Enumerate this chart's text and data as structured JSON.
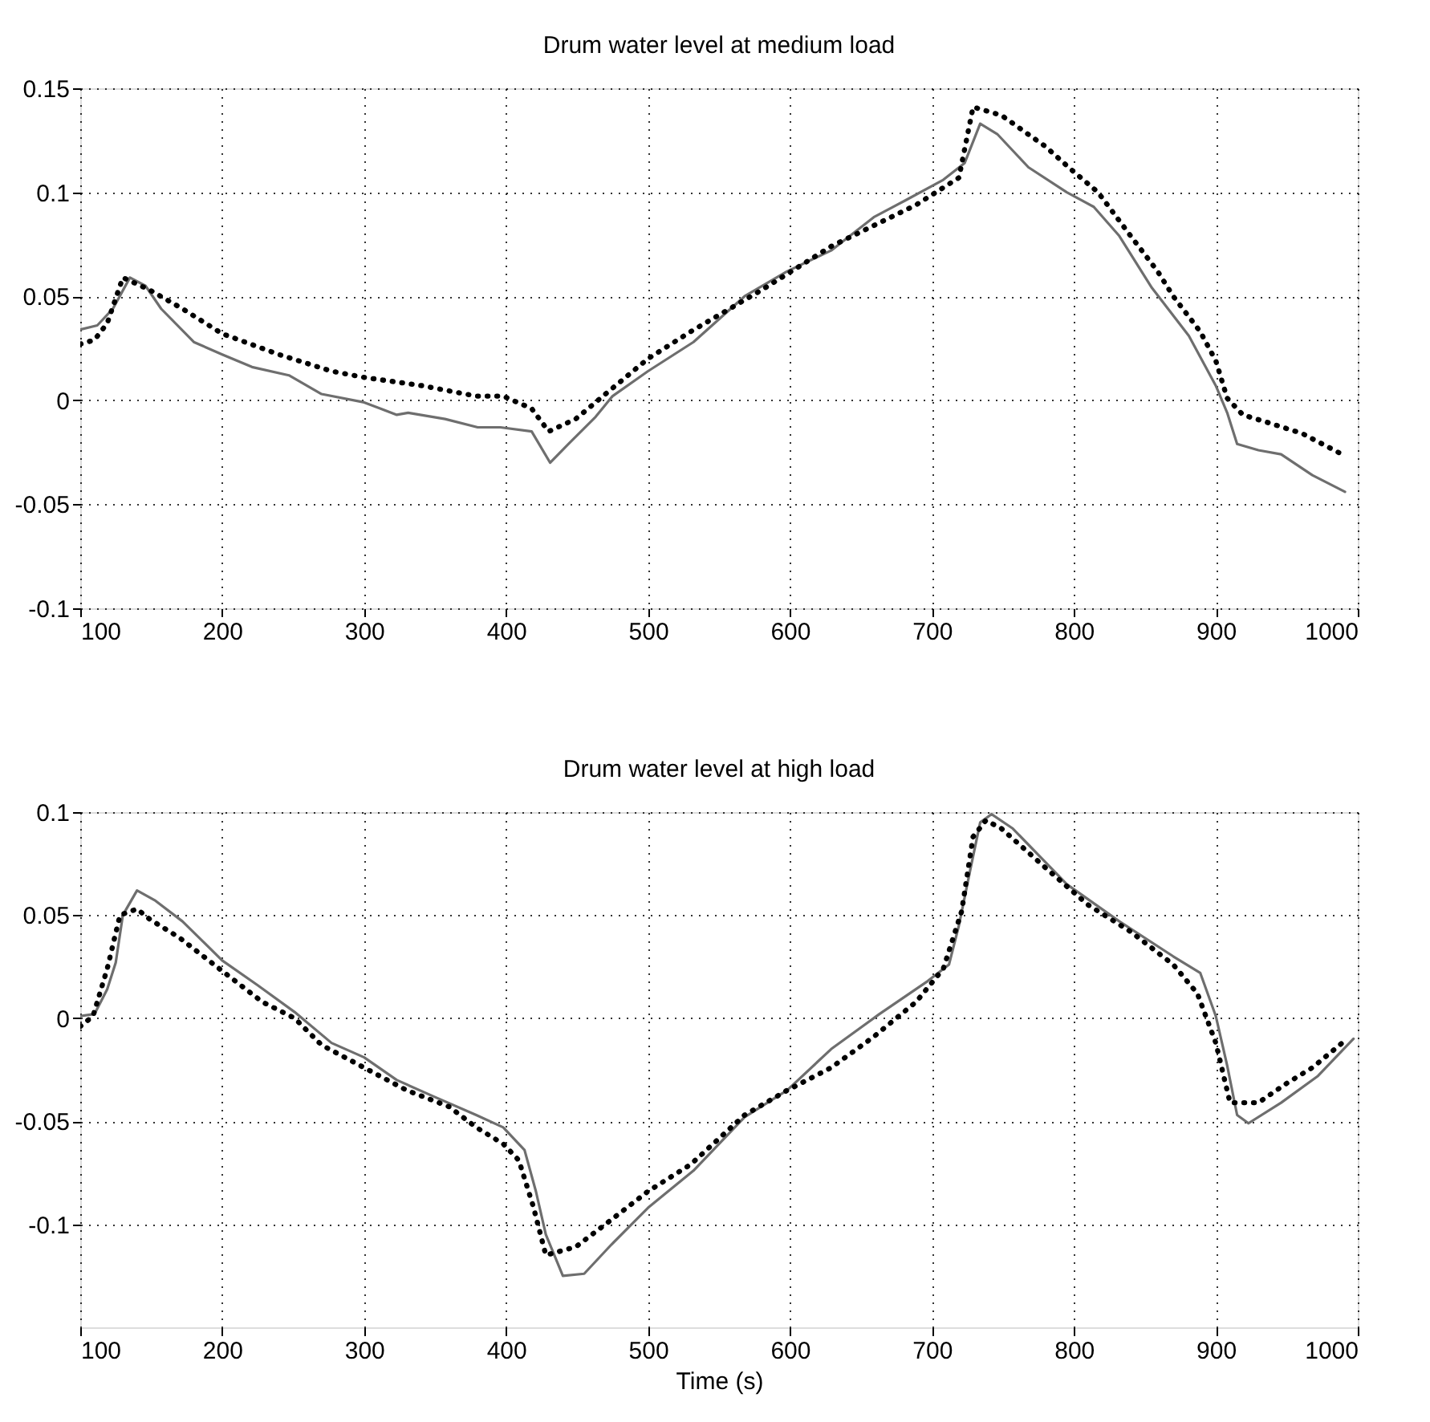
{
  "chart_data": [
    {
      "type": "line",
      "title": "Drum water level at medium load",
      "xlim": [
        100,
        1000
      ],
      "xticks": [
        100,
        200,
        300,
        400,
        500,
        600,
        700,
        800,
        900,
        1000
      ],
      "ylim": [
        -0.1,
        0.15
      ],
      "yticks": [
        -0.1,
        -0.05,
        0,
        0.05,
        0.1,
        0.15
      ],
      "grid": true,
      "legend": false,
      "marker": "none",
      "series": [
        {
          "color": "#6e6e6e",
          "line_style": "solid",
          "x": [
            100,
            112,
            123,
            135,
            146,
            157,
            180,
            200,
            221,
            247,
            270,
            300,
            323,
            331,
            357,
            380,
            396,
            418,
            431,
            444,
            463,
            475,
            500,
            532,
            568,
            598,
            629,
            659,
            681,
            708,
            723,
            734,
            746,
            768,
            795,
            814,
            832,
            855,
            881,
            900,
            908,
            915,
            930,
            946,
            968,
            991
          ],
          "values": [
            0.034,
            0.036,
            0.044,
            0.059,
            0.055,
            0.044,
            0.028,
            0.022,
            0.016,
            0.012,
            0.003,
            -0.001,
            -0.007,
            -0.006,
            -0.009,
            -0.013,
            -0.013,
            -0.015,
            -0.03,
            -0.021,
            -0.008,
            0.002,
            0.014,
            0.028,
            0.05,
            0.062,
            0.072,
            0.088,
            0.096,
            0.106,
            0.114,
            0.133,
            0.128,
            0.112,
            0.1,
            0.093,
            0.079,
            0.054,
            0.031,
            0.007,
            -0.006,
            -0.021,
            -0.024,
            -0.026,
            -0.036,
            -0.044
          ]
        },
        {
          "color": "#000000",
          "line_style": "dotted",
          "x": [
            100,
            110,
            119,
            130,
            149,
            172,
            200,
            240,
            277,
            300,
            341,
            379,
            398,
            418,
            430,
            449,
            470,
            500,
            530,
            580,
            629,
            689,
            719,
            729,
            749,
            780,
            798,
            817,
            840,
            859,
            870,
            889,
            900,
            908,
            919,
            938,
            961,
            989
          ],
          "values": [
            0.027,
            0.029,
            0.037,
            0.059,
            0.053,
            0.044,
            0.032,
            0.022,
            0.014,
            0.011,
            0.007,
            0.002,
            0.002,
            -0.004,
            -0.015,
            -0.009,
            0.003,
            0.02,
            0.033,
            0.053,
            0.074,
            0.094,
            0.107,
            0.141,
            0.137,
            0.122,
            0.111,
            0.1,
            0.079,
            0.062,
            0.05,
            0.033,
            0.019,
            0.001,
            -0.007,
            -0.011,
            -0.016,
            -0.026
          ]
        }
      ]
    },
    {
      "type": "line",
      "title": "Drum water level at high load",
      "xlabel": "Time (s)",
      "xlim": [
        100,
        1000
      ],
      "xticks": [
        100,
        200,
        300,
        400,
        500,
        600,
        700,
        800,
        900,
        1000
      ],
      "ylim": [
        -0.15,
        0.1
      ],
      "yticks": [
        -0.1,
        -0.05,
        0,
        0.05,
        0.1
      ],
      "grid": true,
      "legend": false,
      "marker": "none",
      "series": [
        {
          "color": "#6e6e6e",
          "line_style": "solid",
          "x": [
            100,
            110,
            119,
            125,
            130,
            140,
            153,
            172,
            200,
            225,
            251,
            277,
            300,
            323,
            349,
            379,
            398,
            413,
            421,
            428,
            440,
            455,
            474,
            500,
            532,
            568,
            598,
            629,
            663,
            697,
            712,
            719,
            727,
            734,
            742,
            757,
            795,
            832,
            870,
            889,
            900,
            908,
            915,
            923,
            946,
            972,
            997
          ],
          "values": [
            0.001,
            0.002,
            0.014,
            0.027,
            0.05,
            0.062,
            0.057,
            0.047,
            0.028,
            0.016,
            0.003,
            -0.012,
            -0.019,
            -0.03,
            -0.038,
            -0.047,
            -0.053,
            -0.064,
            -0.084,
            -0.105,
            -0.125,
            -0.124,
            -0.11,
            -0.092,
            -0.074,
            -0.048,
            -0.035,
            -0.015,
            0.002,
            0.018,
            0.026,
            0.045,
            0.072,
            0.095,
            0.099,
            0.092,
            0.065,
            0.047,
            0.03,
            0.022,
            0.001,
            -0.023,
            -0.047,
            -0.051,
            -0.041,
            -0.028,
            -0.01
          ]
        },
        {
          "color": "#000000",
          "line_style": "dotted",
          "x": [
            100,
            109,
            119,
            128,
            140,
            149,
            170,
            198,
            228,
            251,
            270,
            300,
            330,
            360,
            379,
            398,
            409,
            419,
            428,
            449,
            470,
            500,
            530,
            568,
            598,
            629,
            659,
            689,
            708,
            721,
            729,
            738,
            749,
            780,
            810,
            840,
            870,
            887,
            900,
            910,
            930,
            949,
            968,
            989
          ],
          "values": [
            -0.004,
            0.001,
            0.024,
            0.05,
            0.053,
            0.048,
            0.039,
            0.024,
            0.008,
            0.0,
            -0.013,
            -0.024,
            -0.035,
            -0.043,
            -0.053,
            -0.061,
            -0.069,
            -0.091,
            -0.115,
            -0.111,
            -0.1,
            -0.084,
            -0.071,
            -0.047,
            -0.035,
            -0.024,
            -0.009,
            0.008,
            0.024,
            0.052,
            0.088,
            0.096,
            0.092,
            0.073,
            0.055,
            0.042,
            0.026,
            0.012,
            -0.012,
            -0.041,
            -0.041,
            -0.032,
            -0.024,
            -0.012
          ]
        }
      ]
    }
  ]
}
